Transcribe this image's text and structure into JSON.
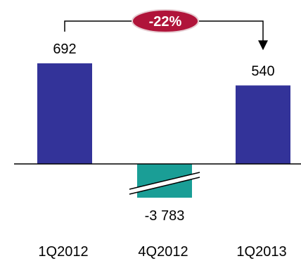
{
  "chart_data": {
    "type": "bar",
    "categories": [
      "1Q2012",
      "4Q2012",
      "1Q2013"
    ],
    "values": [
      692,
      -3783,
      540
    ],
    "value_labels": [
      "692",
      "-3 783",
      "540"
    ],
    "bar_colors": [
      "#333399",
      "#1a9e96",
      "#333399"
    ],
    "broken_axis_bar_index": 1,
    "change_annotation": {
      "text": "-22%",
      "from_index": 0,
      "to_index": 2,
      "badge_color": "#b0143a",
      "badge_border": "#e6cdd2"
    },
    "baseline_color": "#000000",
    "grid": false,
    "legend": "none"
  }
}
